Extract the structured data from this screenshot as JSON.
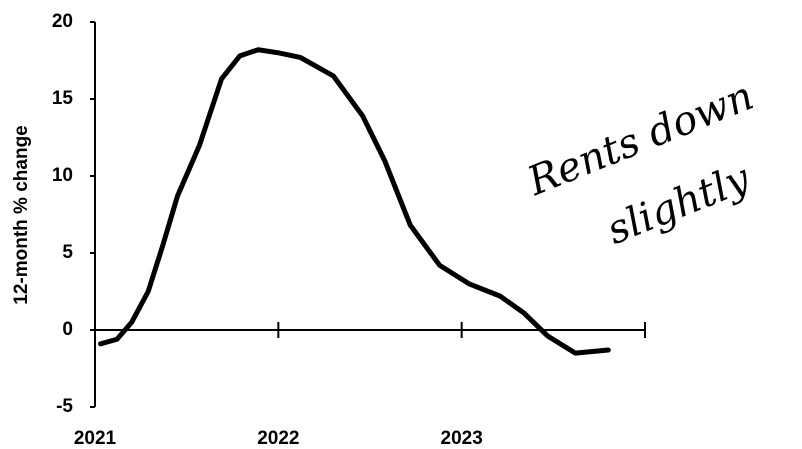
{
  "chart_data": {
    "type": "line",
    "y_label": "12-month % change",
    "annotations": [
      "Rents down",
      "slightly"
    ],
    "x": [
      2021.03,
      2021.12,
      2021.2,
      2021.29,
      2021.37,
      2021.45,
      2021.57,
      2021.69,
      2021.79,
      2021.89,
      2022.0,
      2022.12,
      2022.3,
      2022.46,
      2022.58,
      2022.72,
      2022.88,
      2023.04,
      2023.21,
      2023.34,
      2023.47,
      2023.62,
      2023.8
    ],
    "series": [
      {
        "color": "#000000",
        "values": [
          -0.9,
          -0.6,
          0.5,
          2.5,
          5.5,
          8.7,
          12,
          16.3,
          17.8,
          18.2,
          18,
          17.7,
          16.5,
          13.9,
          11,
          6.8,
          4.2,
          3,
          2.2,
          1.1,
          -0.4,
          -1.5,
          -1.3
        ]
      }
    ],
    "xlim": [
      2021,
      2024
    ],
    "xticks": [
      2021,
      2022,
      2023
    ],
    "ylim": [
      -5,
      20
    ],
    "yticks": [
      -5,
      0,
      5,
      10,
      15,
      20
    ]
  }
}
